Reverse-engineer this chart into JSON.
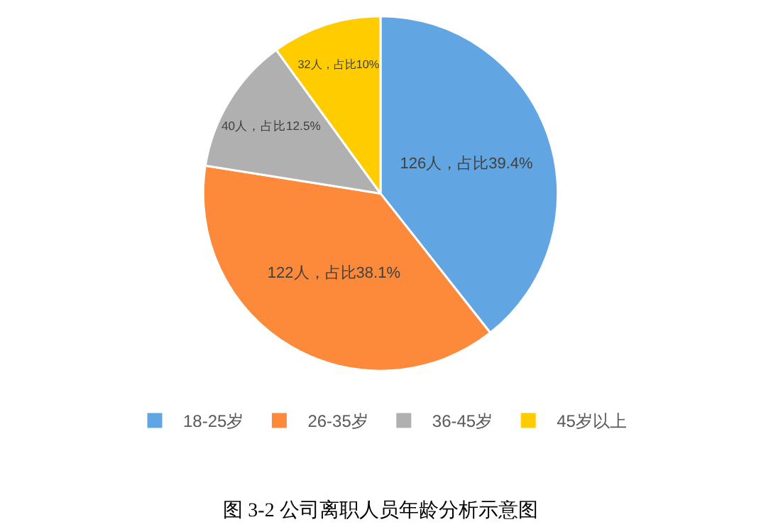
{
  "chart_data": {
    "type": "pie",
    "title": "图 3-2 公司离职人员年龄分析示意图",
    "categories": [
      "18-25岁",
      "26-35岁",
      "36-45岁",
      "45岁以上"
    ],
    "values": [
      126,
      122,
      40,
      32
    ],
    "colors": [
      "#62a5e3",
      "#fc8a3a",
      "#b0b0b0",
      "#ffcc00"
    ],
    "value_labels": [
      "126人，占比39.4%",
      "122人，占比38.1%",
      "40人，占比12.5%",
      "32人，占比10%"
    ],
    "legend": "bottom"
  }
}
